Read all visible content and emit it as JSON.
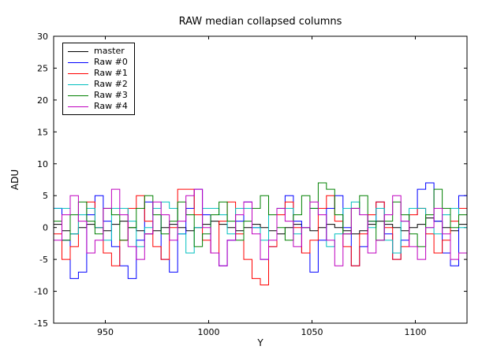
{
  "figure": {
    "title": "RAW median collapsed columns",
    "xlabel": "Y",
    "ylabel": "ADU"
  },
  "chart_data": {
    "type": "line",
    "title": "RAW median collapsed columns",
    "xlabel": "Y",
    "ylabel": "ADU",
    "xlim": [
      925,
      1125
    ],
    "ylim": [
      -15,
      30
    ],
    "xticks": [
      950,
      1000,
      1050,
      1100
    ],
    "yticks": [
      -15,
      -10,
      -5,
      0,
      5,
      10,
      15,
      20,
      25,
      30
    ],
    "grid": false,
    "legend_position": "upper left",
    "step_style": true,
    "x_start": 925,
    "x_step": 4,
    "series": [
      {
        "name": "master",
        "color": "#000000",
        "values": [
          0.5,
          -0.5,
          -1,
          0,
          0.5,
          0,
          -0.5,
          0.5,
          1,
          0,
          -0.5,
          -1,
          -0.5,
          0,
          0.5,
          0,
          -0.5,
          0,
          0.5,
          1,
          0.5,
          0,
          -0.5,
          0,
          0.5,
          0,
          -0.5,
          -1,
          0,
          0.5,
          0,
          -0.5,
          0,
          0.5,
          0,
          -0.5,
          -1,
          -0.5,
          0.5,
          1,
          0.5,
          0,
          -0.5,
          0,
          0.5,
          1.5,
          1,
          0,
          -0.5,
          0.5,
          0
        ]
      },
      {
        "name": "Raw #0",
        "color": "#0000ff",
        "values": [
          3,
          -2,
          -8,
          -7,
          2,
          5,
          1,
          -3,
          -6,
          -8,
          -2,
          4,
          2,
          -5,
          -7,
          -1,
          3,
          6,
          2,
          -4,
          -6,
          -2,
          1,
          4,
          0,
          -5,
          -3,
          2,
          5,
          1,
          -4,
          -7,
          -2,
          3,
          5,
          0,
          -6,
          -3,
          1,
          4,
          -1,
          -5,
          -2,
          2,
          6,
          7,
          1,
          -4,
          -6,
          5,
          -3
        ]
      },
      {
        "name": "Raw #1",
        "color": "#ff0000",
        "values": [
          -1,
          -5,
          -3,
          2,
          4,
          0,
          -4,
          -6,
          -2,
          3,
          5,
          1,
          -3,
          -5,
          0,
          6,
          6,
          2,
          -2,
          -4,
          1,
          4,
          -1,
          -5,
          -8,
          -9,
          -3,
          2,
          4,
          0,
          -4,
          -2,
          3,
          5,
          1,
          -3,
          -6,
          -1,
          2,
          4,
          0,
          -5,
          -3,
          2,
          3,
          -1,
          -4,
          -2,
          1,
          3,
          -2
        ]
      },
      {
        "name": "Raw #2",
        "color": "#00bfbf",
        "values": [
          3,
          3,
          -1,
          2,
          3,
          0,
          -2,
          3,
          3,
          1,
          -3,
          0,
          3,
          4,
          3,
          -1,
          -4,
          0,
          3,
          3,
          2,
          -1,
          3,
          3,
          0,
          -2,
          2,
          3,
          3,
          -1,
          0,
          3,
          2,
          -3,
          -1,
          3,
          4,
          2,
          0,
          3,
          -2,
          -4,
          1,
          3,
          3,
          0,
          -1,
          2,
          3,
          0,
          -1
        ]
      },
      {
        "name": "Raw #3",
        "color": "#008000",
        "values": [
          1,
          -2,
          2,
          4,
          1,
          -1,
          3,
          2,
          -2,
          0,
          3,
          5,
          2,
          -1,
          1,
          4,
          2,
          -3,
          -1,
          2,
          4,
          1,
          -2,
          1,
          3,
          5,
          2,
          0,
          -2,
          2,
          5,
          3,
          7,
          6,
          2,
          -1,
          3,
          5,
          1,
          -2,
          1,
          4,
          2,
          -1,
          -3,
          2,
          6,
          3,
          0,
          2,
          -1
        ]
      },
      {
        "name": "Raw #4",
        "color": "#bf00bf",
        "values": [
          -2,
          2,
          5,
          1,
          -4,
          -2,
          3,
          6,
          2,
          -3,
          -5,
          -1,
          4,
          2,
          -2,
          1,
          5,
          6,
          0,
          -4,
          -6,
          -2,
          2,
          4,
          -1,
          -5,
          -2,
          3,
          1,
          -3,
          0,
          4,
          2,
          -2,
          -6,
          -1,
          3,
          2,
          -4,
          -2,
          2,
          5,
          1,
          -3,
          -5,
          0,
          3,
          -1,
          -5,
          -4,
          1
        ]
      }
    ]
  }
}
